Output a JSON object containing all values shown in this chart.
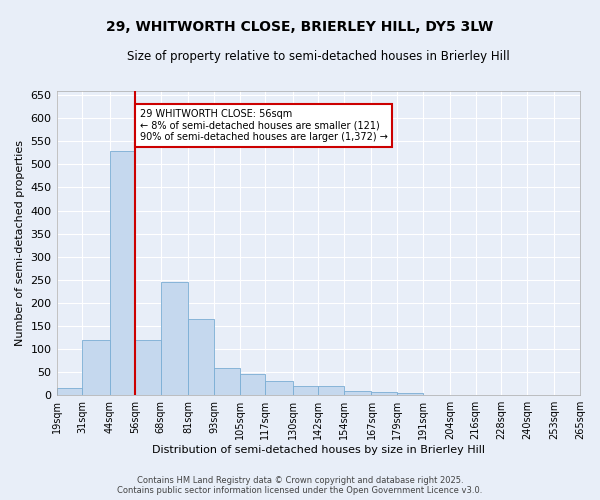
{
  "title": "29, WHITWORTH CLOSE, BRIERLEY HILL, DY5 3LW",
  "subtitle": "Size of property relative to semi-detached houses in Brierley Hill",
  "xlabel": "Distribution of semi-detached houses by size in Brierley Hill",
  "ylabel": "Number of semi-detached properties",
  "background_color": "#e8eef8",
  "bar_color": "#c5d8ee",
  "bar_edge_color": "#7aadd4",
  "grid_color": "#ffffff",
  "vline_color": "#cc0000",
  "vline_x": 56,
  "annotation_text": "29 WHITWORTH CLOSE: 56sqm\n← 8% of semi-detached houses are smaller (121)\n90% of semi-detached houses are larger (1,372) →",
  "annotation_box_color": "#ffffff",
  "annotation_border_color": "#cc0000",
  "categories": [
    "19sqm",
    "31sqm",
    "44sqm",
    "56sqm",
    "68sqm",
    "81sqm",
    "93sqm",
    "105sqm",
    "117sqm",
    "130sqm",
    "142sqm",
    "154sqm",
    "167sqm",
    "179sqm",
    "191sqm",
    "204sqm",
    "216sqm",
    "228sqm",
    "240sqm",
    "253sqm",
    "265sqm"
  ],
  "bin_edges": [
    19,
    31,
    44,
    56,
    68,
    81,
    93,
    105,
    117,
    130,
    142,
    154,
    167,
    179,
    191,
    204,
    216,
    228,
    240,
    253,
    265
  ],
  "bar_heights": [
    15,
    120,
    530,
    120,
    245,
    165,
    60,
    45,
    30,
    20,
    20,
    10,
    8,
    5,
    0,
    0,
    0,
    0,
    0,
    0
  ],
  "ylim": [
    0,
    660
  ],
  "yticks": [
    0,
    50,
    100,
    150,
    200,
    250,
    300,
    350,
    400,
    450,
    500,
    550,
    600,
    650
  ],
  "footer_line1": "Contains HM Land Registry data © Crown copyright and database right 2025.",
  "footer_line2": "Contains public sector information licensed under the Open Government Licence v3.0."
}
